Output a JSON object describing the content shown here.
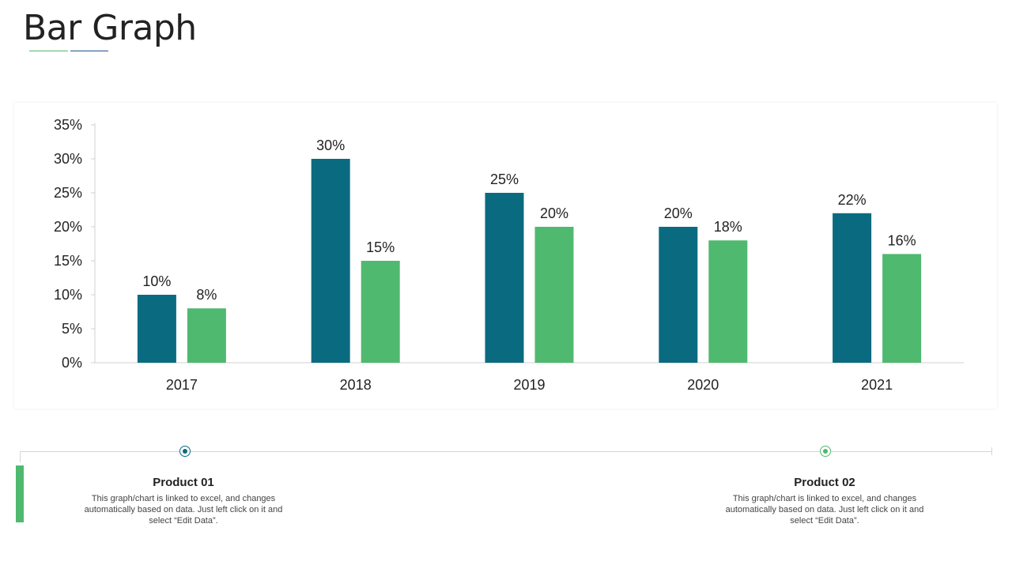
{
  "title": "Bar Graph",
  "colors": {
    "product_01": "#0a6b80",
    "product_02": "#4fb96f",
    "axis": "#d0d0d0",
    "text": "#222222"
  },
  "chart_data": {
    "type": "bar",
    "title": "",
    "xlabel": "",
    "ylabel": "",
    "categories": [
      "2017",
      "2018",
      "2019",
      "2020",
      "2021"
    ],
    "series": [
      {
        "name": "Product 01",
        "values": [
          10,
          30,
          25,
          20,
          22
        ]
      },
      {
        "name": "Product 02",
        "values": [
          8,
          15,
          20,
          18,
          16
        ]
      }
    ],
    "ylim": [
      0,
      35
    ],
    "yticks": [
      0,
      5,
      10,
      15,
      20,
      25,
      30,
      35
    ],
    "value_suffix": "%",
    "grid": false
  },
  "legend": [
    {
      "name": "Product 01",
      "description": "This graph/chart is linked to excel, and changes automatically based on data. Just left click on it and select “Edit Data”."
    },
    {
      "name": "Product 02",
      "description": "This graph/chart is linked to excel, and changes automatically based on data. Just left click on it and select “Edit Data”."
    }
  ]
}
